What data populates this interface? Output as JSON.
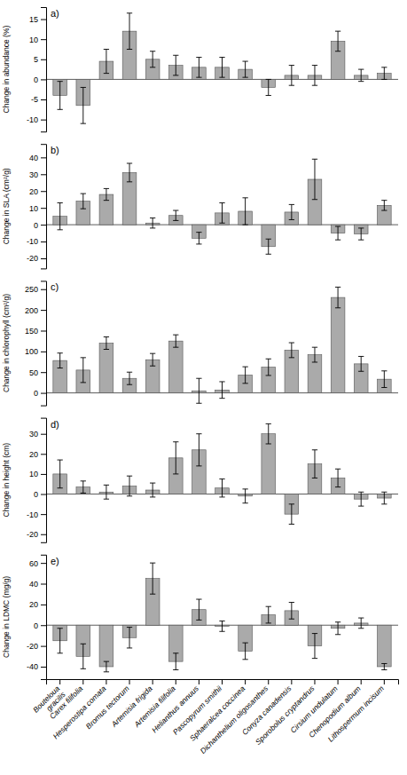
{
  "chart_data": [
    {
      "type": "bar",
      "title": "a)",
      "ylabel": "Change in abundance (%)",
      "categories": [
        "Bouteloua\ngracilis",
        "Carex filifolia",
        "Hesperostipa comata",
        "Bromus tectorum",
        "Artemisia frigida",
        "Artemisia filifolia",
        "Helianthus annuus",
        "Pascopyrum smithii",
        "Sphaeralcea coccinea",
        "Dichanthelium oligosanthes",
        "Conyza canadensis",
        "Sporobolus cryptandrus",
        "Cirsium undulatum",
        "Chenopodium album",
        "Lithospermum incisum"
      ],
      "values": [
        -4.0,
        -6.5,
        4.5,
        12.0,
        5.0,
        3.5,
        3.0,
        3.0,
        2.5,
        -2.0,
        1.0,
        1.0,
        9.5,
        1.0,
        1.5
      ],
      "errors": [
        3.5,
        4.5,
        3.0,
        4.5,
        2.0,
        2.5,
        2.5,
        2.5,
        2.0,
        2.0,
        2.5,
        2.5,
        2.5,
        1.5,
        1.5
      ],
      "ylim": [
        -13,
        18
      ],
      "yticks": [
        -10,
        -5,
        0,
        5,
        10,
        15
      ],
      "color": "#aaaaaa",
      "tick_labels": "y"
    },
    {
      "type": "bar",
      "title": "b)",
      "ylabel": "Change in SLA (cm²/g)",
      "categories": [
        "Bouteloua\ngracilis",
        "Carex filifolia",
        "Hesperostipa comata",
        "Bromus tectorum",
        "Artemisia frigida",
        "Artemisia filifolia",
        "Helianthus annuus",
        "Pascopyrum smithii",
        "Sphaeralcea coccinea",
        "Dichanthelium oligosanthes",
        "Conyza canadensis",
        "Sporobolus cryptandrus",
        "Cirsium undulatum",
        "Chenopodium album",
        "Lithospermum incisum"
      ],
      "values": [
        5.0,
        14.0,
        18.0,
        31.0,
        1.0,
        5.5,
        -8.0,
        7.0,
        8.0,
        -13.0,
        7.5,
        27.0,
        -5.0,
        -5.5,
        11.5
      ],
      "errors": [
        8.0,
        4.5,
        3.5,
        5.5,
        3.0,
        3.0,
        3.5,
        6.0,
        8.0,
        4.5,
        4.5,
        12.0,
        4.0,
        3.5,
        3.0
      ],
      "ylim": [
        -26,
        48
      ],
      "yticks": [
        -20,
        -10,
        0,
        10,
        20,
        30,
        40
      ],
      "color": "#aaaaaa",
      "tick_labels": "y"
    },
    {
      "type": "bar",
      "title": "c)",
      "ylabel": "Change in chlorophyll (cm²/g)",
      "categories": [
        "Bouteloua\ngracilis",
        "Carex filifolia",
        "Hesperostipa comata",
        "Bromus tectorum",
        "Artemisia frigida",
        "Artemisia filifolia",
        "Helianthus annuus",
        "Pascopyrum smithii",
        "Sphaeralcea coccinea",
        "Dichanthelium oligosanthes",
        "Conyza canadensis",
        "Sporobolus cryptandrus",
        "Cirsium undulatum",
        "Chenopodium album",
        "Lithospermum incisum"
      ],
      "values": [
        78.0,
        55.0,
        120.0,
        35.0,
        80.0,
        125.0,
        5.0,
        7.0,
        43.0,
        62.0,
        103.0,
        92.0,
        230.0,
        70.0,
        33.0
      ],
      "errors": [
        18.0,
        30.0,
        15.0,
        15.0,
        15.0,
        15.0,
        30.0,
        20.0,
        20.0,
        20.0,
        18.0,
        18.0,
        25.0,
        18.0,
        20.0
      ],
      "ylim": [
        -30,
        270
      ],
      "yticks": [
        0,
        50,
        100,
        150,
        200,
        250
      ],
      "color": "#aaaaaa",
      "tick_labels": "y"
    },
    {
      "type": "bar",
      "title": "d)",
      "ylabel": "Change in height (cm)",
      "categories": [
        "Bouteloua\ngracilis",
        "Carex filifolia",
        "Hesperostipa comata",
        "Bromus tectorum",
        "Artemisia frigida",
        "Artemisia filifolia",
        "Helianthus annuus",
        "Pascopyrum smithii",
        "Sphaeralcea coccinea",
        "Dichanthelium oligosanthes",
        "Conyza canadensis",
        "Sporobolus cryptandrus",
        "Cirsium undulatum",
        "Chenopodium album",
        "Lithospermum incisum"
      ],
      "values": [
        10.0,
        3.5,
        1.0,
        4.0,
        2.0,
        18.0,
        22.0,
        3.0,
        -1.0,
        30.0,
        -10.0,
        15.0,
        8.0,
        -2.5,
        -2.0
      ],
      "errors": [
        7.0,
        3.0,
        3.5,
        5.0,
        3.5,
        8.0,
        8.0,
        4.5,
        3.5,
        5.0,
        5.0,
        7.0,
        4.5,
        3.5,
        3.0
      ],
      "ylim": [
        -24,
        38
      ],
      "yticks": [
        -20,
        -10,
        0,
        10,
        20,
        30
      ],
      "color": "#aaaaaa",
      "tick_labels": "y"
    },
    {
      "type": "bar",
      "title": "e)",
      "ylabel": "Change in LDMC (mg/g)",
      "categories": [
        "Bouteloua\ngracilis",
        "Carex filifolia",
        "Hesperostipa comata",
        "Bromus tectorum",
        "Artemisia frigida",
        "Artemisia filifolia",
        "Helianthus annuus",
        "Pascopyrum smithii",
        "Sphaeralcea coccinea",
        "Dichanthelium oligosanthes",
        "Conyza canadensis",
        "Sporobolus cryptandrus",
        "Cirsium undulatum",
        "Chenopodium album",
        "Lithospermum incisum"
      ],
      "values": [
        -15.0,
        -30.0,
        -40.0,
        -12.0,
        45.0,
        -35.0,
        15.0,
        -1.0,
        -25.0,
        10.0,
        14.0,
        -20.0,
        -3.0,
        2.0,
        -40.0
      ],
      "errors": [
        12.0,
        12.0,
        5.0,
        10.0,
        15.0,
        8.0,
        10.0,
        5.0,
        8.0,
        8.0,
        8.0,
        12.0,
        6.0,
        5.0,
        3.0
      ],
      "ylim": [
        -52,
        68
      ],
      "yticks": [
        -40,
        -20,
        0,
        20,
        40,
        60
      ],
      "color": "#aaaaaa"
    }
  ]
}
